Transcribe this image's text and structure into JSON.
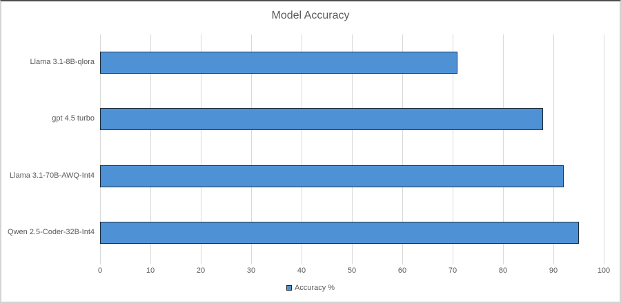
{
  "chart_data": {
    "type": "bar",
    "orientation": "horizontal",
    "title": "Model Accuracy",
    "categories": [
      "Llama 3.1-8B-qlora",
      "gpt 4.5 turbo",
      "Llama 3.1-70B-AWQ-Int4",
      "Qwen 2.5-Coder-32B-Int4"
    ],
    "series": [
      {
        "name": "Accuracy %",
        "values": [
          71,
          88,
          92,
          95
        ]
      }
    ],
    "xlabel": "",
    "ylabel": "",
    "xlim": [
      0,
      100
    ],
    "xticks": [
      0,
      10,
      20,
      30,
      40,
      50,
      60,
      70,
      80,
      90,
      100
    ],
    "grid": "vertical-gridlines-on",
    "legend": {
      "label": "Accuracy %",
      "position": "bottom-center"
    },
    "colors": {
      "bar_fill": "#4E91D5",
      "bar_border": "#1C2B39",
      "gridline": "#D9D9D9",
      "text": "#595959"
    }
  }
}
